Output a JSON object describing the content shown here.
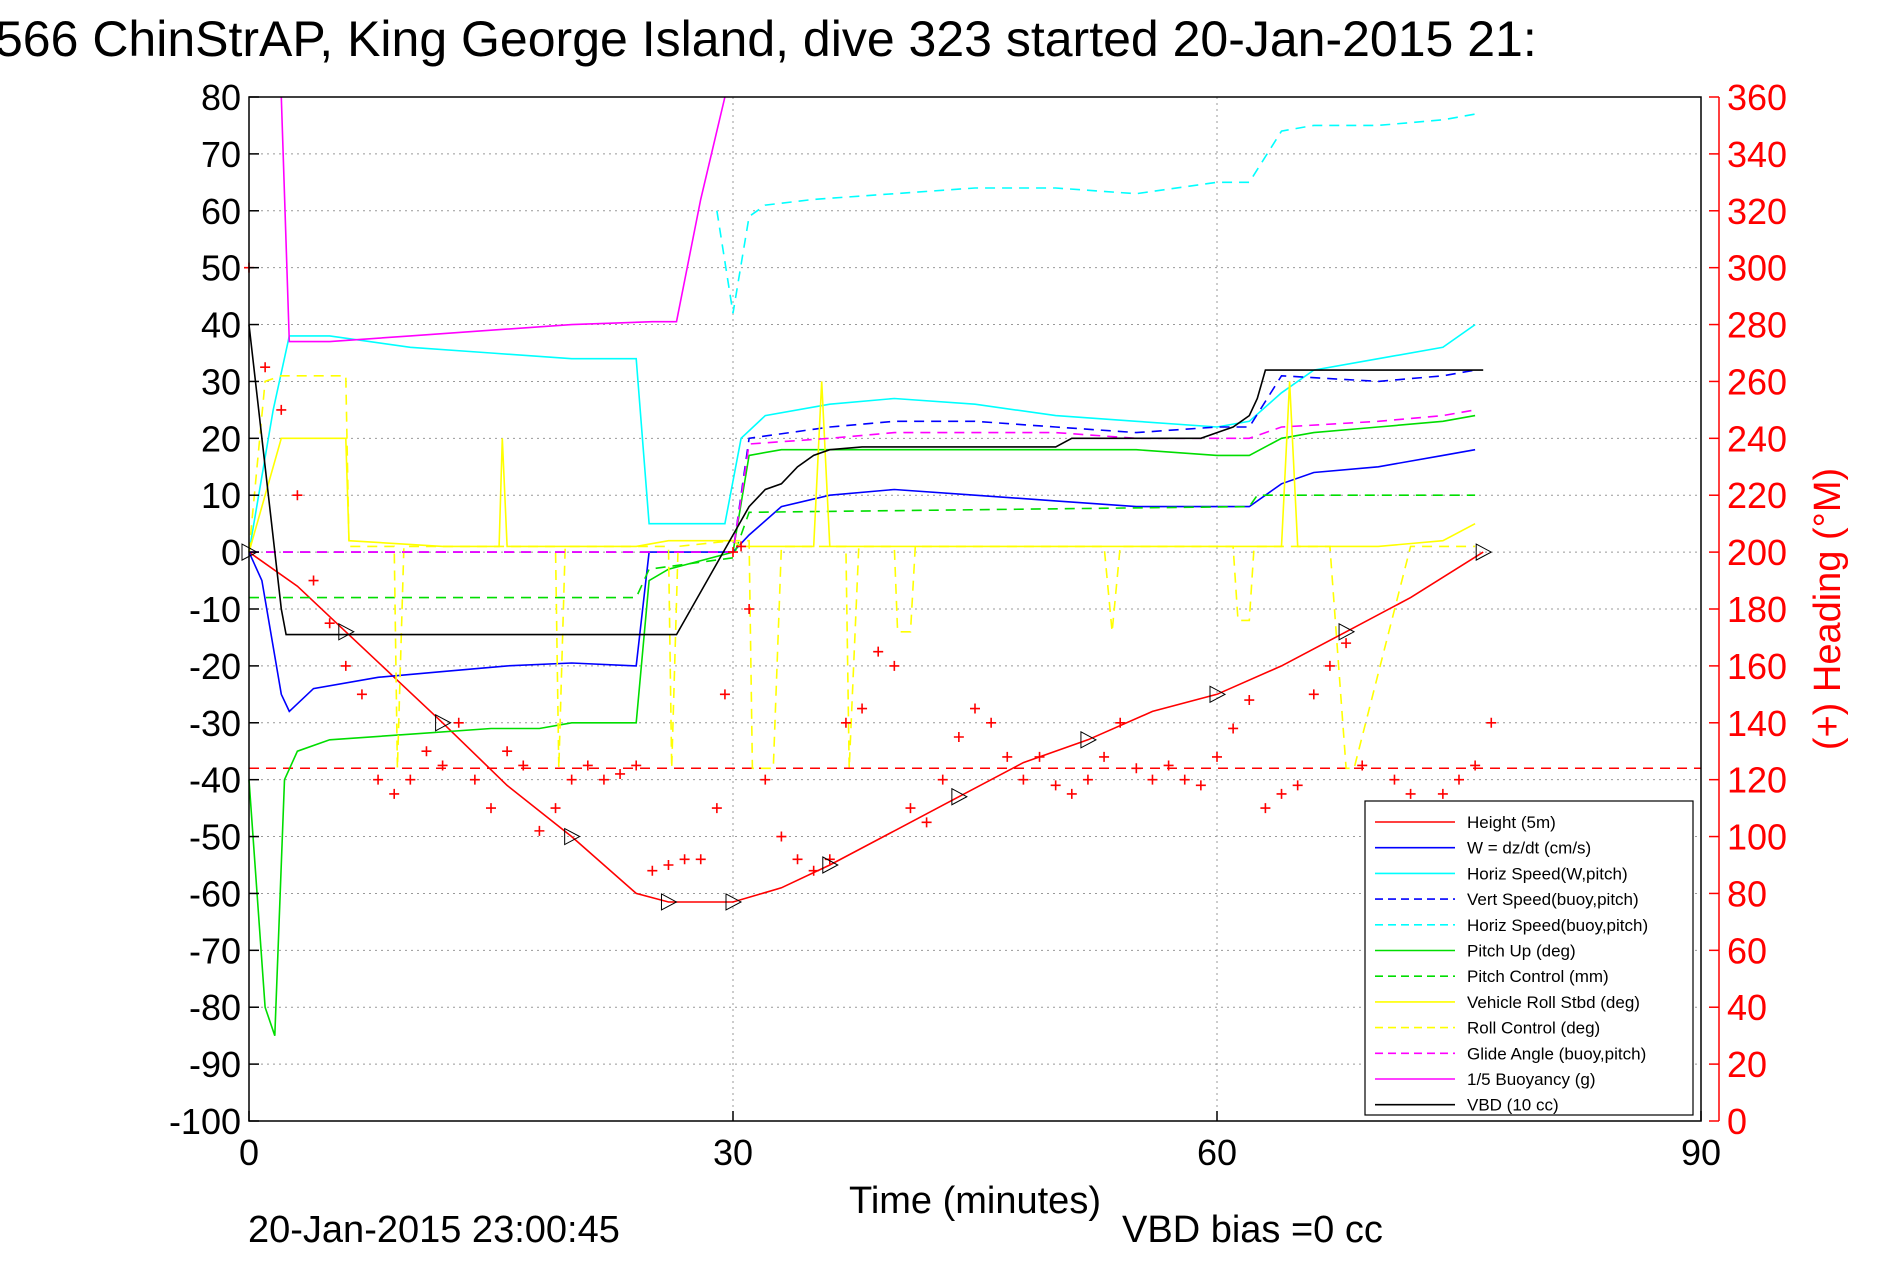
{
  "chart_data": {
    "type": "line",
    "title": "566 ChinStrAP, King George Island, dive 323 started 20-Jan-2015 21:",
    "xlabel": "Time (minutes)",
    "ylabel_right": "(+) Heading (°M)",
    "xlim": [
      0,
      90
    ],
    "ylim_left": [
      -100,
      80
    ],
    "ylim_right": [
      0,
      360
    ],
    "x_ticks": [
      "0",
      "30",
      "60",
      "90"
    ],
    "y_ticks_left": [
      "80",
      "70",
      "60",
      "50",
      "40",
      "30",
      "20",
      "10",
      "0",
      "-10",
      "-20",
      "-30",
      "-40",
      "-50",
      "-60",
      "-70",
      "-80",
      "-90",
      "-100"
    ],
    "y_ticks_right": [
      "360",
      "340",
      "320",
      "300",
      "280",
      "260",
      "240",
      "220",
      "200",
      "180",
      "160",
      "140",
      "120",
      "100",
      "80",
      "60",
      "40",
      "20",
      "0"
    ],
    "grid": true,
    "legend_position": "bottom-right",
    "footer_left": "20-Jan-2015 23:00:45",
    "footer_right": "VBD bias =0 cc",
    "series": [
      {
        "name": "Height (5m)",
        "color": "#ff0000",
        "dash": "solid",
        "x": [
          0,
          3,
          6,
          9,
          12,
          16,
          20,
          24,
          26,
          28,
          30,
          33,
          36,
          40,
          44,
          48,
          52,
          56,
          60,
          64,
          68,
          72,
          76.5
        ],
        "y": [
          0,
          -6,
          -14,
          -22,
          -30,
          -41,
          -50,
          -60,
          -61.5,
          -61.5,
          -61.5,
          -59,
          -55,
          -49,
          -43,
          -37,
          -33,
          -28,
          -25,
          -20,
          -14,
          -8,
          0
        ]
      },
      {
        "name": "W = dz/dt (cm/s)",
        "color": "#0000ff",
        "dash": "solid",
        "x": [
          0,
          0.8,
          2,
          2.5,
          4,
          8,
          12,
          16,
          20,
          24,
          24.8,
          26,
          30,
          31,
          33,
          36,
          40,
          45,
          50,
          55,
          60,
          62,
          64,
          66,
          70,
          74,
          76
        ],
        "y": [
          0,
          -5,
          -25,
          -28,
          -24,
          -22,
          -21,
          -20,
          -19.5,
          -20,
          0,
          0,
          0,
          3,
          8,
          10,
          11,
          10,
          9,
          8,
          8,
          8,
          12,
          14,
          15,
          17,
          18
        ]
      },
      {
        "name": "Horiz Speed(W,pitch)",
        "color": "#00ffff",
        "dash": "solid",
        "x": [
          0,
          1.5,
          2.5,
          5,
          10,
          15,
          20,
          24,
          24.8,
          26,
          28,
          29.5,
          30.5,
          32,
          36,
          40,
          45,
          50,
          55,
          60,
          62,
          64,
          66,
          70,
          74,
          76
        ],
        "y": [
          0,
          25,
          38,
          38,
          36,
          35,
          34,
          34,
          5,
          5,
          5,
          5,
          20,
          24,
          26,
          27,
          26,
          24,
          23,
          22,
          23,
          28,
          32,
          34,
          36,
          40
        ]
      },
      {
        "name": "Vert Speed(buoy,pitch)",
        "color": "#0000ff",
        "dash": "dashed",
        "x": [
          0,
          26,
          30,
          31,
          36,
          40,
          45,
          50,
          55,
          60,
          62,
          64,
          70,
          74,
          76
        ],
        "y": [
          0,
          0,
          0,
          20,
          22,
          23,
          23,
          22,
          21,
          22,
          22,
          31,
          30,
          31,
          32
        ]
      },
      {
        "name": "Horiz Speed(buoy,pitch)",
        "color": "#00ffff",
        "dash": "dashed",
        "x": [
          29,
          30,
          31,
          32,
          35,
          40,
          45,
          50,
          55,
          60,
          62,
          64,
          66,
          70,
          74,
          76
        ],
        "y": [
          60,
          42,
          59,
          61,
          62,
          63,
          64,
          64,
          63,
          65,
          65,
          74,
          75,
          75,
          76,
          77
        ]
      },
      {
        "name": "Pitch Up (deg)",
        "color": "#00dd00",
        "dash": "solid",
        "x": [
          0,
          1,
          1.6,
          2.2,
          3,
          5,
          10,
          15,
          18,
          20,
          24,
          24.8,
          26,
          30,
          31,
          33,
          36,
          40,
          45,
          50,
          55,
          60,
          62,
          64,
          66,
          70,
          74,
          76
        ],
        "y": [
          -40,
          -80,
          -85,
          -40,
          -35,
          -33,
          -32,
          -31,
          -31,
          -30,
          -30,
          -5,
          -3,
          0,
          17,
          18,
          18,
          18,
          18,
          18,
          18,
          17,
          17,
          20,
          21,
          22,
          23,
          24
        ]
      },
      {
        "name": "Pitch Control (mm)",
        "color": "#00dd00",
        "dash": "dashed",
        "x": [
          0,
          2,
          24,
          24.8,
          30,
          31,
          62,
          62.5,
          76
        ],
        "y": [
          -8,
          -8,
          -8,
          -3,
          -1,
          7,
          8,
          10,
          10
        ]
      },
      {
        "name": "Vehicle Roll Stbd (deg)",
        "color": "#ffff00",
        "dash": "solid",
        "x": [
          0,
          2,
          6,
          6.2,
          12,
          15.5,
          15.7,
          16,
          24,
          26,
          28,
          29.5,
          30,
          30.5,
          35,
          35.5,
          36,
          40,
          45,
          50,
          55,
          60,
          62,
          64,
          64.5,
          65,
          70,
          74,
          76
        ],
        "y": [
          0,
          20,
          20,
          2,
          1,
          1,
          20,
          1,
          1,
          2,
          2,
          2,
          2,
          1,
          1,
          30,
          1,
          1,
          1,
          1,
          1,
          1,
          1,
          1,
          30,
          1,
          1,
          2,
          5
        ]
      },
      {
        "name": "Roll Control (deg)",
        "color": "#ffff00",
        "dash": "dashed",
        "x": [
          0,
          1,
          2,
          6,
          6.2,
          9,
          9.2,
          9.6,
          19,
          19.2,
          19.6,
          26,
          26.2,
          26.6,
          30,
          31,
          31.2,
          32.5,
          33,
          34,
          37,
          37.2,
          37.8,
          40,
          40.2,
          41,
          41.3,
          52,
          53,
          53.5,
          54,
          61,
          61.3,
          62,
          62.3,
          65,
          67,
          68,
          68.5,
          72,
          76
        ],
        "y": [
          0,
          30,
          31,
          31,
          1,
          1,
          -38,
          1,
          1,
          -38,
          1,
          1,
          -38,
          1,
          2,
          2,
          -38,
          -38,
          1,
          1,
          1,
          -38,
          1,
          1,
          -14,
          -14,
          1,
          1,
          1,
          -14,
          1,
          1,
          -12,
          -12,
          1,
          1,
          1,
          -38,
          -38,
          1,
          1
        ]
      },
      {
        "name": "Glide Angle (buoy,pitch)",
        "color": "#ff00ff",
        "dash": "dashed",
        "x": [
          0,
          26,
          30,
          31,
          36,
          40,
          45,
          50,
          55,
          60,
          62,
          64,
          70,
          74,
          76
        ],
        "y": [
          0,
          0,
          0,
          19,
          20,
          21,
          21,
          21,
          20,
          20,
          20,
          22,
          23,
          24,
          25
        ]
      },
      {
        "name": "1/5 Buoyancy (g)",
        "color": "#ff00ff",
        "dash": "solid",
        "x": [
          2,
          2.5,
          5,
          10,
          15,
          20,
          25,
          26.5,
          28,
          29.5
        ],
        "y": [
          80,
          37,
          37,
          38,
          39,
          40,
          40.5,
          40.5,
          62,
          80
        ]
      },
      {
        "name": "VBD (10 cc)",
        "color": "#000000",
        "dash": "solid",
        "x": [
          0,
          2,
          2.3,
          10,
          20,
          26,
          26.5,
          30,
          31,
          32,
          33,
          34,
          35,
          36,
          38,
          50,
          51,
          59,
          60,
          61,
          62,
          62.5,
          63,
          76.5
        ],
        "y": [
          40,
          -10,
          -14.5,
          -14.5,
          -14.5,
          -14.5,
          -14.5,
          3,
          8,
          11,
          12,
          15,
          17,
          18,
          18.5,
          18.5,
          20,
          20,
          21,
          22,
          24,
          27,
          32,
          32
        ]
      }
    ],
    "heading_reference": {
      "name": "",
      "color": "#ff0000",
      "axis": "right",
      "value": 124
    },
    "heading": {
      "axis": "right",
      "color": "#ff0000",
      "marker": "+",
      "x": [
        0,
        1,
        2,
        3,
        4,
        5,
        6,
        7,
        8,
        9,
        10,
        11,
        12,
        13,
        14,
        15,
        16,
        17,
        18,
        19,
        20,
        21,
        22,
        23,
        24,
        25,
        26,
        27,
        28,
        29,
        29.5,
        30,
        30.5,
        31,
        32,
        33,
        34,
        35,
        36,
        37,
        38,
        39,
        40,
        41,
        42,
        43,
        44,
        45,
        46,
        47,
        48,
        49,
        50,
        51,
        52,
        53,
        54,
        55,
        56,
        57,
        58,
        59,
        60,
        61,
        62,
        63,
        64,
        65,
        66,
        67,
        68,
        69,
        70,
        71,
        72,
        73,
        74,
        75,
        76,
        77
      ],
      "y": [
        300,
        265,
        250,
        220,
        190,
        175,
        160,
        150,
        120,
        115,
        120,
        130,
        125,
        140,
        120,
        110,
        130,
        125,
        102,
        110,
        120,
        125,
        120,
        122,
        125,
        88,
        90,
        92,
        92,
        110,
        150,
        200,
        202,
        180,
        120,
        100,
        92,
        88,
        92,
        140,
        145,
        165,
        160,
        110,
        105,
        120,
        135,
        145,
        140,
        128,
        120,
        128,
        118,
        115,
        120,
        128,
        140,
        124,
        120,
        125,
        120,
        118,
        128,
        138,
        148,
        110,
        115,
        118,
        150,
        160,
        168,
        125,
        105,
        120,
        115,
        110,
        115,
        120,
        125,
        140
      ]
    }
  },
  "legend": {
    "entries": [
      {
        "label": "Height (5m)",
        "color": "#ff0000",
        "dash": "solid"
      },
      {
        "label": "W = dz/dt (cm/s)",
        "color": "#0000ff",
        "dash": "solid"
      },
      {
        "label": "Horiz Speed(W,pitch)",
        "color": "#00ffff",
        "dash": "solid"
      },
      {
        "label": "Vert Speed(buoy,pitch)",
        "color": "#0000ff",
        "dash": "dashed"
      },
      {
        "label": "Horiz Speed(buoy,pitch)",
        "color": "#00ffff",
        "dash": "dashed"
      },
      {
        "label": "Pitch Up (deg)",
        "color": "#00dd00",
        "dash": "solid"
      },
      {
        "label": "Pitch Control (mm)",
        "color": "#00dd00",
        "dash": "dashed"
      },
      {
        "label": "Vehicle Roll Stbd (deg)",
        "color": "#ffff00",
        "dash": "solid"
      },
      {
        "label": "Roll Control (deg)",
        "color": "#ffff00",
        "dash": "dashed"
      },
      {
        "label": "Glide Angle (buoy,pitch)",
        "color": "#ff00ff",
        "dash": "dashed"
      },
      {
        "label": "1/5 Buoyancy (g)",
        "color": "#ff00ff",
        "dash": "solid"
      },
      {
        "label": "VBD (10 cc)",
        "color": "#000000",
        "dash": "solid"
      }
    ]
  }
}
